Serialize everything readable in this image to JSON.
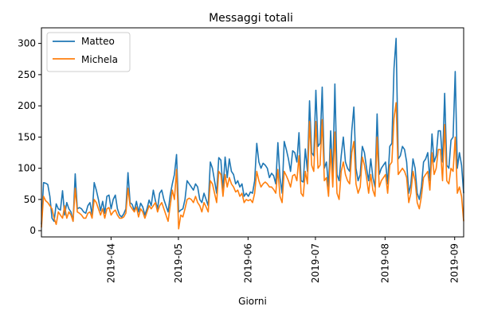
{
  "chart_data": {
    "type": "line",
    "title": "Messaggi totali",
    "xlabel": "Giorni",
    "ylabel": "",
    "x_start": "2019-03-01",
    "x_end": "2019-09-05",
    "x_tick_labels": [
      "2019-04",
      "2019-05",
      "2019-06",
      "2019-07",
      "2019-08",
      "2019-09"
    ],
    "ylim": [
      -10,
      325
    ],
    "y_ticks": [
      0,
      50,
      100,
      150,
      200,
      250,
      300
    ],
    "legend": "top-left",
    "grid": false,
    "series": [
      {
        "name": "Matteo",
        "color": "#1f77b4",
        "values": [
          10,
          77,
          76,
          74,
          55,
          20,
          15,
          43,
          35,
          33,
          64,
          25,
          45,
          35,
          30,
          15,
          91,
          35,
          37,
          35,
          30,
          28,
          40,
          45,
          25,
          77,
          65,
          50,
          32,
          47,
          28,
          55,
          57,
          35,
          50,
          57,
          35,
          25,
          22,
          27,
          35,
          93,
          45,
          42,
          32,
          47,
          30,
          44,
          38,
          25,
          35,
          49,
          40,
          65,
          48,
          35,
          60,
          65,
          50,
          40,
          30,
          57,
          75,
          90,
          122,
          30,
          33,
          35,
          50,
          80,
          75,
          70,
          65,
          75,
          70,
          50,
          45,
          60,
          50,
          40,
          110,
          100,
          80,
          60,
          117,
          113,
          65,
          118,
          85,
          115,
          95,
          90,
          75,
          80,
          70,
          75,
          55,
          60,
          55,
          62,
          60,
          80,
          140,
          110,
          100,
          108,
          105,
          100,
          85,
          92,
          88,
          75,
          141,
          85,
          60,
          143,
          130,
          115,
          95,
          128,
          125,
          110,
          157,
          80,
          78,
          131,
          95,
          208,
          125,
          120,
          225,
          135,
          140,
          230,
          100,
          110,
          70,
          160,
          85,
          235,
          90,
          80,
          120,
          150,
          110,
          100,
          95,
          160,
          198,
          100,
          80,
          90,
          135,
          125,
          100,
          80,
          115,
          85,
          70,
          187,
          90,
          100,
          105,
          110,
          75,
          135,
          140,
          260,
          308,
          115,
          120,
          135,
          130,
          110,
          60,
          75,
          115,
          100,
          60,
          50,
          70,
          110,
          115,
          125,
          80,
          155,
          110,
          120,
          160,
          160,
          110,
          220,
          105,
          100,
          145,
          150,
          255,
          100,
          125,
          105,
          60
        ]
      },
      {
        "name": "Michela",
        "color": "#ff7f0e",
        "values": [
          5,
          55,
          48,
          45,
          40,
          35,
          20,
          10,
          30,
          25,
          20,
          40,
          20,
          30,
          25,
          15,
          68,
          30,
          28,
          25,
          20,
          20,
          28,
          30,
          20,
          50,
          45,
          35,
          25,
          35,
          20,
          35,
          37,
          25,
          30,
          33,
          25,
          20,
          20,
          22,
          28,
          68,
          40,
          35,
          30,
          38,
          22,
          35,
          30,
          20,
          30,
          40,
          35,
          40,
          45,
          30,
          40,
          45,
          35,
          25,
          15,
          40,
          65,
          50,
          98,
          3,
          25,
          22,
          35,
          50,
          52,
          50,
          45,
          55,
          45,
          40,
          30,
          45,
          38,
          30,
          80,
          75,
          60,
          45,
          95,
          90,
          55,
          90,
          70,
          85,
          75,
          70,
          62,
          65,
          55,
          60,
          45,
          50,
          48,
          50,
          45,
          60,
          95,
          80,
          70,
          75,
          78,
          75,
          70,
          70,
          66,
          60,
          98,
          55,
          45,
          95,
          88,
          80,
          70,
          88,
          90,
          80,
          120,
          60,
          55,
          95,
          75,
          175,
          105,
          95,
          175,
          100,
          105,
          178,
          80,
          85,
          55,
          130,
          70,
          158,
          60,
          50,
          95,
          110,
          90,
          80,
          75,
          125,
          143,
          75,
          60,
          70,
          118,
          105,
          85,
          60,
          90,
          65,
          55,
          150,
          70,
          80,
          85,
          90,
          60,
          105,
          110,
          180,
          205,
          90,
          95,
          100,
          95,
          85,
          45,
          60,
          95,
          80,
          45,
          35,
          55,
          85,
          90,
          95,
          65,
          125,
          90,
          100,
          130,
          130,
          80,
          170,
          80,
          75,
          100,
          95,
          150,
          60,
          70,
          55,
          15
        ]
      }
    ]
  }
}
